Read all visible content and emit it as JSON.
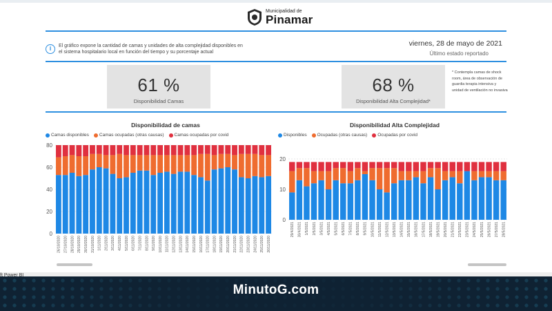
{
  "header": {
    "logo_small": "Municipalidad de",
    "logo_big": "Pinamar",
    "info_text": "El gráfico expone la cantidad de camas y unidades de alta complejidad disponibles en el sistema hospitalario local en función del tiempo y su porcentaje actual",
    "date": "viernes, 28 de mayo de 2021",
    "last_report": "Último estado reportado"
  },
  "cards": [
    {
      "value": "61 %",
      "label": "Disponibilidad Camas"
    },
    {
      "value": "68 %",
      "label": "Disponibilidad Alta Complejidad*"
    }
  ],
  "footnote": "* Contempla camas de shock room, área de observación de guardia terapia intensiva y unidad de ventilación no invasiva",
  "footer": {
    "app_label": "ft Power BI",
    "banner": "MinutoG.com"
  },
  "colors": {
    "available": "#1e88e5",
    "occupied_other": "#ef6c2f",
    "occupied_covid": "#e0303f",
    "accent": "#2d8fe0"
  },
  "chart_data": [
    {
      "type": "bar",
      "stacked": true,
      "title": "Disponibilidad de camas",
      "ylim": [
        0,
        80
      ],
      "yticks": [
        0,
        20,
        40,
        60,
        80
      ],
      "grid": true,
      "legend_position": "top-left",
      "categories": [
        "26/10/2020",
        "27/10/2020",
        "28/10/2020",
        "29/10/2020",
        "30/10/2020",
        "31/10/2020",
        "1/11/2020",
        "2/11/2020",
        "3/11/2020",
        "4/11/2020",
        "5/11/2020",
        "6/11/2020",
        "7/11/2020",
        "8/11/2020",
        "9/11/2020",
        "10/11/2020",
        "11/11/2020",
        "12/11/2020",
        "13/11/2020",
        "14/11/2020",
        "15/11/2020",
        "16/11/2020",
        "17/11/2020",
        "18/11/2020",
        "19/11/2020",
        "20/11/2020",
        "21/11/2020",
        "22/11/2020",
        "23/11/2020",
        "24/11/2020",
        "25/11/2020",
        "26/11/2020"
      ],
      "series": [
        {
          "name": "Camas disponibles",
          "values": [
            53,
            53,
            55,
            52,
            53,
            58,
            60,
            59,
            54,
            50,
            51,
            55,
            57,
            57,
            53,
            55,
            56,
            54,
            56,
            56,
            53,
            51,
            48,
            58,
            59,
            60,
            58,
            51,
            50,
            52,
            51,
            52
          ]
        },
        {
          "name": "Camas ocupadas (otras causas)",
          "values": [
            16,
            17,
            16,
            18,
            17,
            14,
            12,
            12,
            17,
            22,
            20,
            16,
            14,
            14,
            18,
            16,
            15,
            17,
            15,
            15,
            18,
            21,
            24,
            13,
            13,
            12,
            13,
            21,
            22,
            20,
            20,
            19
          ]
        },
        {
          "name": "Camas ocupadas por covid",
          "values": [
            11,
            10,
            9,
            10,
            10,
            8,
            8,
            9,
            9,
            8,
            9,
            9,
            9,
            9,
            9,
            9,
            9,
            9,
            9,
            9,
            9,
            8,
            8,
            9,
            8,
            8,
            9,
            8,
            8,
            8,
            9,
            9
          ]
        }
      ]
    },
    {
      "type": "bar",
      "stacked": true,
      "title": "Disponibilidad Alta Complejidad",
      "ylim": [
        0,
        20
      ],
      "yticks": [
        0,
        10,
        20
      ],
      "grid": true,
      "legend_position": "top-left",
      "categories": [
        "29/4/2021",
        "30/4/2021",
        "1/5/2021",
        "2/5/2021",
        "3/5/2021",
        "4/5/2021",
        "5/5/2021",
        "6/5/2021",
        "7/5/2021",
        "8/5/2021",
        "9/5/2021",
        "10/5/2021",
        "11/5/2021",
        "12/5/2021",
        "13/5/2021",
        "14/5/2021",
        "15/5/2021",
        "16/5/2021",
        "17/5/2021",
        "18/5/2021",
        "19/5/2021",
        "20/5/2021",
        "21/5/2021",
        "22/5/2021",
        "23/5/2021",
        "24/5/2021",
        "25/5/2021",
        "26/5/2021",
        "27/5/2021",
        "28/5/2021"
      ],
      "series": [
        {
          "name": "Disponibles",
          "values": [
            9,
            13,
            11,
            12,
            13,
            10,
            13,
            12,
            12,
            13,
            15,
            13,
            10,
            9,
            12,
            13,
            13,
            14,
            12,
            14,
            10,
            13,
            14,
            12,
            16,
            13,
            14,
            14,
            13,
            13
          ]
        },
        {
          "name": "Ocupadas (otras causas)",
          "values": [
            7,
            4,
            6,
            4,
            3,
            6,
            4,
            5,
            4,
            4,
            1,
            4,
            7,
            8,
            5,
            3,
            3,
            2,
            4,
            3,
            7,
            3,
            2,
            4,
            0,
            3,
            2,
            2,
            3,
            3
          ]
        },
        {
          "name": "Ocupadas por covid",
          "values": [
            3,
            2,
            2,
            3,
            3,
            3,
            2,
            2,
            3,
            2,
            3,
            2,
            2,
            2,
            2,
            3,
            3,
            3,
            3,
            2,
            2,
            3,
            3,
            3,
            3,
            3,
            3,
            3,
            3,
            3
          ]
        }
      ]
    }
  ]
}
